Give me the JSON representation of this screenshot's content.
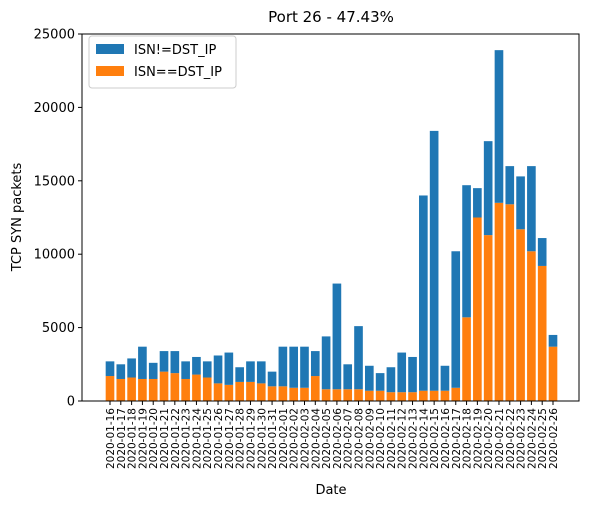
{
  "chart_data": {
    "type": "bar",
    "stacked": true,
    "title": "Port 26 - 47.43%",
    "xlabel": "Date",
    "ylabel": "TCP SYN packets",
    "ylim": [
      0,
      25000
    ],
    "yticks": [
      0,
      5000,
      10000,
      15000,
      20000,
      25000
    ],
    "grid": false,
    "legend_position": "top-left",
    "categories": [
      "2020-01-16",
      "2020-01-17",
      "2020-01-18",
      "2020-01-19",
      "2020-01-20",
      "2020-01-21",
      "2020-01-22",
      "2020-01-23",
      "2020-01-24",
      "2020-01-25",
      "2020-01-26",
      "2020-01-27",
      "2020-01-28",
      "2020-01-29",
      "2020-01-30",
      "2020-01-31",
      "2020-02-01",
      "2020-02-02",
      "2020-02-03",
      "2020-02-04",
      "2020-02-05",
      "2020-02-06",
      "2020-02-07",
      "2020-02-08",
      "2020-02-09",
      "2020-02-10",
      "2020-02-11",
      "2020-02-12",
      "2020-02-13",
      "2020-02-14",
      "2020-02-15",
      "2020-02-16",
      "2020-02-17",
      "2020-02-18",
      "2020-02-19",
      "2020-02-20",
      "2020-02-21",
      "2020-02-22",
      "2020-02-23",
      "2020-02-24",
      "2020-02-25",
      "2020-02-26"
    ],
    "series": [
      {
        "name": "ISN!=DST_IP",
        "color": "#1f77b4",
        "values": [
          1000,
          1000,
          1300,
          2200,
          1100,
          1400,
          1500,
          1200,
          1200,
          1100,
          1900,
          2200,
          1000,
          1400,
          1500,
          1000,
          2700,
          2800,
          2800,
          1700,
          3600,
          7200,
          1700,
          4300,
          1700,
          1200,
          1700,
          2700,
          2400,
          13300,
          17700,
          1700,
          9300,
          9000,
          2000,
          6400,
          10400,
          2600,
          3600,
          5800,
          1900,
          800
        ]
      },
      {
        "name": "ISN==DST_IP",
        "color": "#ff7f0e",
        "values": [
          1700,
          1500,
          1600,
          1500,
          1500,
          2000,
          1900,
          1500,
          1800,
          1600,
          1200,
          1100,
          1300,
          1300,
          1200,
          1000,
          1000,
          900,
          900,
          1700,
          800,
          800,
          800,
          800,
          700,
          700,
          600,
          600,
          600,
          700,
          700,
          700,
          900,
          5700,
          12500,
          11300,
          13500,
          13400,
          11700,
          10200,
          9200,
          3700
        ]
      }
    ]
  }
}
